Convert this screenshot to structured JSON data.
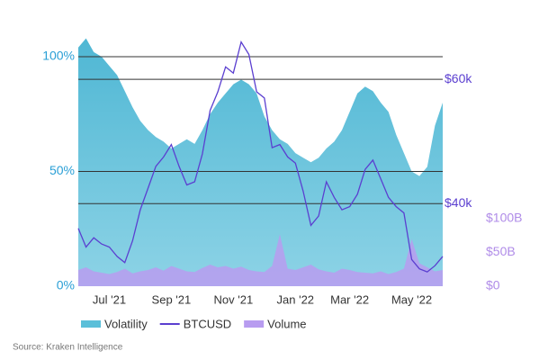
{
  "chart_data": {
    "type": "area-line",
    "source": "Source: Kraken Intelligence",
    "categories": [
      null,
      null,
      null,
      null,
      "Jul '21",
      null,
      null,
      null,
      null,
      null,
      null,
      null,
      "Sep '21",
      null,
      null,
      null,
      null,
      null,
      null,
      null,
      "Nov '21",
      null,
      null,
      null,
      null,
      null,
      null,
      null,
      "Jan '22",
      null,
      null,
      null,
      null,
      null,
      null,
      "Mar '22",
      null,
      null,
      null,
      null,
      null,
      null,
      null,
      "May '22",
      null,
      null,
      null,
      null
    ],
    "series": [
      {
        "name": "Volatility",
        "color": "#5bbfd9",
        "axis": "y",
        "kind": "area",
        "values": [
          104,
          108,
          102,
          100,
          96,
          92,
          85,
          78,
          72,
          68,
          65,
          63,
          60,
          62,
          64,
          62,
          68,
          75,
          80,
          84,
          88,
          90,
          88,
          84,
          74,
          68,
          64,
          62,
          58,
          56,
          54,
          56,
          60,
          63,
          68,
          76,
          84,
          87,
          85,
          80,
          76,
          66,
          58,
          50,
          48,
          52,
          70,
          80
        ]
      },
      {
        "name": "BTCUSD",
        "color": "#5b3fd0",
        "axis": "y2",
        "kind": "line",
        "values": [
          36000,
          33000,
          34500,
          33500,
          33000,
          31500,
          30500,
          34000,
          39000,
          42500,
          46000,
          47500,
          49500,
          46000,
          43000,
          43500,
          48000,
          55000,
          58000,
          62000,
          61000,
          66000,
          64000,
          58000,
          57000,
          49000,
          49500,
          47500,
          46500,
          42000,
          36500,
          38000,
          43500,
          41000,
          39000,
          39500,
          41500,
          45500,
          47000,
          44000,
          41000,
          39500,
          38500,
          31000,
          29500,
          29000,
          30000,
          31500
        ]
      },
      {
        "name": "Volume",
        "color": "#b89cf0",
        "axis": "y3",
        "kind": "area",
        "values": [
          24,
          28,
          22,
          20,
          18,
          21,
          26,
          19,
          22,
          24,
          28,
          23,
          30,
          26,
          22,
          21,
          27,
          32,
          28,
          30,
          26,
          29,
          24,
          22,
          21,
          30,
          77,
          26,
          24,
          28,
          32,
          25,
          22,
          20,
          26,
          24,
          21,
          20,
          19,
          22,
          18,
          21,
          26,
          70,
          34,
          28,
          22,
          24
        ]
      }
    ],
    "ylim": [
      0,
      111
    ],
    "yticks": [
      {
        "value": 0,
        "label": "0%"
      },
      {
        "value": 50,
        "label": "50%"
      },
      {
        "value": 100,
        "label": "100%"
      }
    ],
    "y2lim": [
      26700,
      67700
    ],
    "y2ticks": [
      {
        "value": 40000,
        "label": "$40k"
      },
      {
        "value": 60000,
        "label": "$60k"
      }
    ],
    "y3lim": [
      0,
      377
    ],
    "y3ticks": [
      {
        "value": 0,
        "label": "$0"
      },
      {
        "value": 50,
        "label": "$50B"
      },
      {
        "value": 100,
        "label": "$100B"
      }
    ],
    "grid": true
  }
}
